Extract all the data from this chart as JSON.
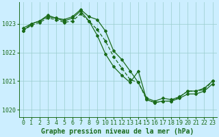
{
  "background_color": "#cceeff",
  "grid_color": "#99cccc",
  "line_color": "#1a6b1a",
  "xlabel": "Graphe pression niveau de la mer (hPa)",
  "xlim": [
    -0.5,
    23.5
  ],
  "ylim": [
    1019.75,
    1023.75
  ],
  "yticks": [
    1020,
    1021,
    1022,
    1023
  ],
  "xticks": [
    0,
    1,
    2,
    3,
    4,
    5,
    6,
    7,
    8,
    9,
    10,
    11,
    12,
    13,
    14,
    15,
    16,
    17,
    18,
    19,
    20,
    21,
    22,
    23
  ],
  "line1_x": [
    0,
    1,
    2,
    3,
    4,
    5,
    6,
    7,
    8,
    9,
    10,
    11,
    12,
    13,
    14,
    15,
    16,
    17,
    18,
    19,
    20,
    21,
    22,
    23
  ],
  "line1_y": [
    1022.85,
    1023.0,
    1023.1,
    1023.3,
    1023.2,
    1023.15,
    1023.25,
    1023.5,
    1023.25,
    1023.15,
    1022.75,
    1022.05,
    1021.75,
    1021.35,
    1020.95,
    1020.4,
    1020.3,
    1020.4,
    1020.35,
    1020.45,
    1020.65,
    1020.65,
    1020.75,
    1021.0
  ],
  "line2_x": [
    0,
    1,
    2,
    3,
    4,
    5,
    6,
    7,
    8,
    9,
    10,
    11,
    12,
    13,
    14,
    15,
    16,
    17,
    18,
    19,
    20,
    21,
    22,
    23
  ],
  "line2_y": [
    1022.75,
    1022.95,
    1023.05,
    1023.2,
    1023.15,
    1023.05,
    1023.1,
    1023.35,
    1023.1,
    1022.8,
    1022.4,
    1021.85,
    1021.45,
    1021.05,
    1020.95,
    1020.35,
    1020.25,
    1020.3,
    1020.3,
    1020.45,
    1020.65,
    1020.65,
    1020.7,
    1021.0
  ],
  "line3_x": [
    0,
    1,
    2,
    3,
    4,
    5,
    6,
    7,
    8,
    9,
    10,
    11,
    12,
    13,
    14,
    15,
    16,
    17,
    18,
    19,
    20,
    21,
    22,
    23
  ],
  "line3_y": [
    1022.75,
    1023.0,
    1023.1,
    1023.25,
    1023.2,
    1023.1,
    1023.2,
    1023.45,
    1023.1,
    1022.6,
    1021.95,
    1021.5,
    1021.2,
    1020.95,
    1021.35,
    1020.35,
    1020.25,
    1020.3,
    1020.3,
    1020.4,
    1020.55,
    1020.55,
    1020.65,
    1020.9
  ],
  "marker_size": 2.0,
  "line_width": 0.9,
  "xlabel_fontsize": 7,
  "tick_fontsize": 6
}
